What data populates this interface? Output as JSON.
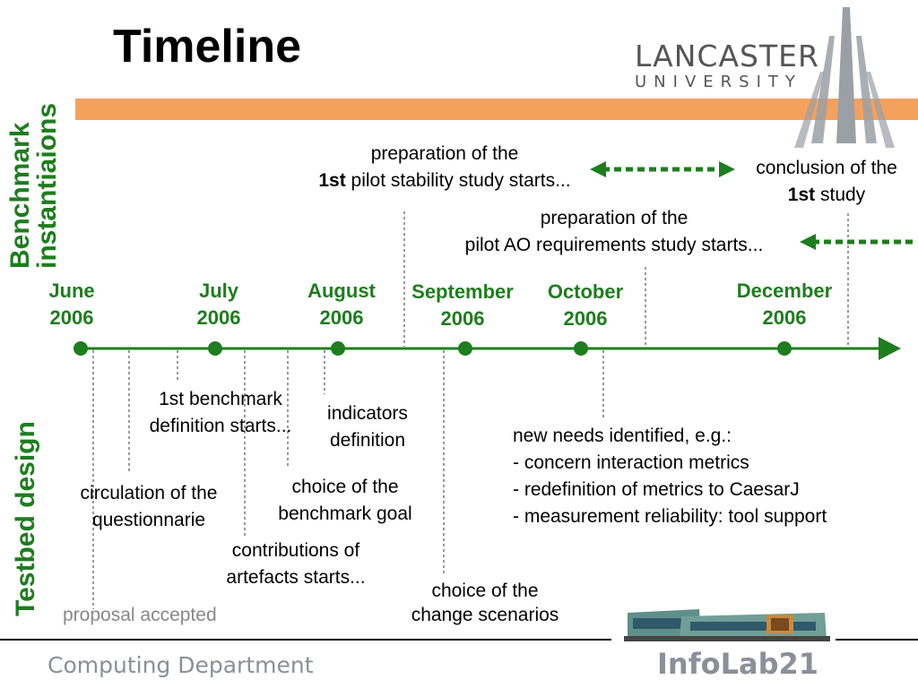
{
  "title": "Timeline",
  "logo": {
    "name": "LANCASTER",
    "sub": "UNIVERSITY"
  },
  "sections": {
    "top": "Benchmark instantiaions",
    "bottom": "Testbed design"
  },
  "months": [
    {
      "name": "June",
      "year": "2006"
    },
    {
      "name": "July",
      "year": "2006"
    },
    {
      "name": "August",
      "year": "2006"
    },
    {
      "name": "September",
      "year": "2006"
    },
    {
      "name": "October",
      "year": "2006"
    },
    {
      "name": "December",
      "year": "2006"
    }
  ],
  "top_events": {
    "stability_prep": {
      "line1": "preparation of the",
      "bold": "1st",
      "line2": " pilot stability study starts..."
    },
    "stability_conclusion": {
      "line1": "conclusion of the",
      "bold": "1st",
      "line2": " study"
    },
    "ao_prep": {
      "line1": "preparation of the",
      "line2": "pilot AO requirements study starts..."
    }
  },
  "bottom_events": {
    "benchmark_def": {
      "line1": "1st benchmark",
      "line2": "definition starts..."
    },
    "indicators": {
      "line1": "indicators",
      "line2": "definition"
    },
    "new_needs": {
      "line1": "new needs identified, e.g.:",
      "line2": "- concern interaction metrics",
      "line3": "- redefinition of metrics to CaesarJ",
      "line4": "- measurement reliability: tool support"
    },
    "questionnaire": {
      "line1": "circulation of the",
      "line2": "questionnarie"
    },
    "benchmark_goal": {
      "line1": "choice of the",
      "line2": "benchmark goal"
    },
    "contributions": {
      "line1": "contributions of",
      "line2": "artefacts starts..."
    },
    "scenarios": {
      "line1": "choice of the",
      "line2": "change scenarios"
    },
    "proposal": {
      "line1": "proposal accepted"
    }
  },
  "footer": {
    "department": "Computing Department",
    "lab": "InfoLab21"
  },
  "colors": {
    "green": "#1e7d1e",
    "orange": "#f5a15e",
    "grey": "#8a8f99"
  }
}
